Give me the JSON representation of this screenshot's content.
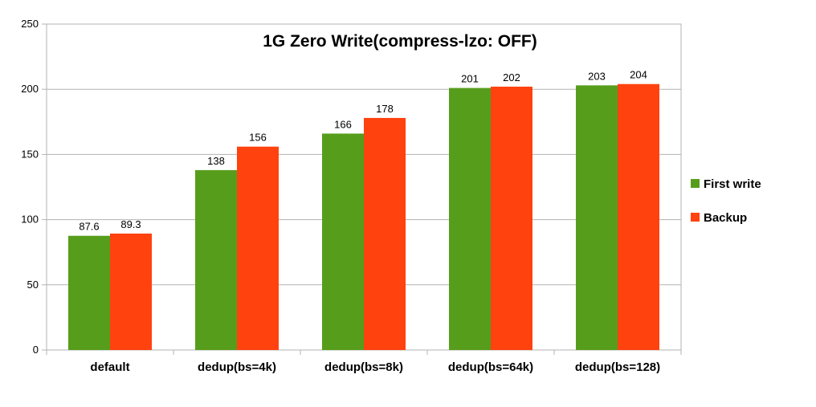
{
  "chart_data": {
    "type": "bar",
    "title": "1G Zero Write(compress-lzo: OFF)",
    "xlabel": "",
    "ylabel": "",
    "categories": [
      "default",
      "dedup(bs=4k)",
      "dedup(bs=8k)",
      "dedup(bs=64k)",
      "dedup(bs=128)"
    ],
    "series": [
      {
        "name": "First write",
        "color": "#579d1c",
        "values": [
          87.6,
          138,
          166,
          201,
          203
        ],
        "labels": [
          "87.6",
          "138",
          "166",
          "201",
          "203"
        ]
      },
      {
        "name": "Backup",
        "color": "#ff420e",
        "values": [
          89.3,
          156,
          178,
          202,
          204
        ],
        "labels": [
          "89.3",
          "156",
          "178",
          "202",
          "204"
        ]
      }
    ],
    "ylim": [
      0,
      250
    ],
    "yticks": [
      "0",
      "50",
      "100",
      "150",
      "200",
      "250"
    ],
    "grid": true,
    "legend_position": "right"
  }
}
